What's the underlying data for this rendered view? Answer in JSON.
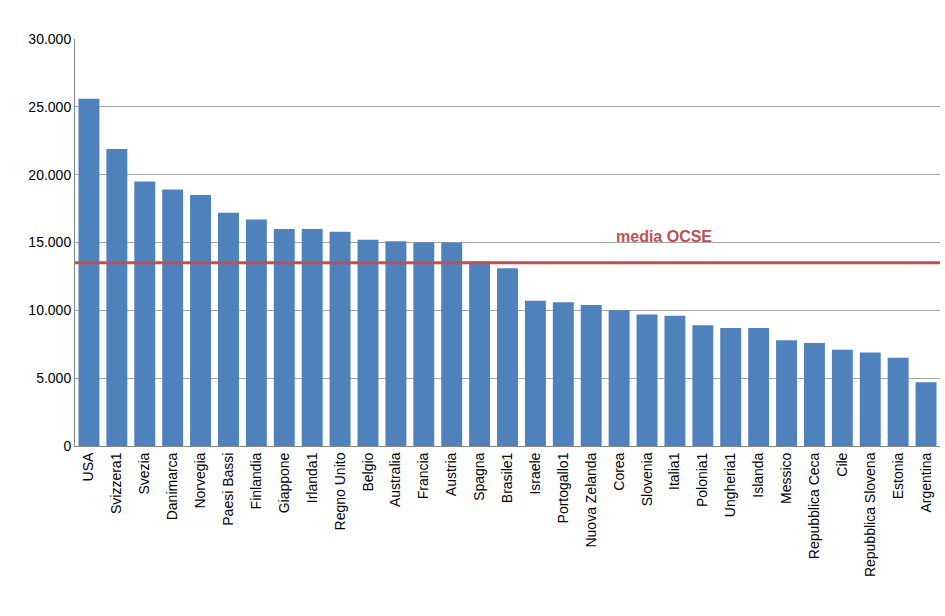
{
  "chart_data": {
    "type": "bar",
    "categories": [
      "USA",
      "Svizzera1",
      "Svezia",
      "Danimarca",
      "Norvegia",
      "Paesi Bassi",
      "Finlandia",
      "Giappone",
      "Irlanda1",
      "Regno Unito",
      "Belgio",
      "Australia",
      "Francia",
      "Austria",
      "Spagna",
      "Brasile1",
      "Israele",
      "Portogallo1",
      "Nuova Zelanda",
      "Corea",
      "Slovenia",
      "Italia1",
      "Polonia1",
      "Ungheria1",
      "Islanda",
      "Messico",
      "Repubblica Ceca",
      "Cile",
      "Repubblica Slovena",
      "Estonia",
      "Argentina"
    ],
    "values": [
      25600,
      21900,
      19500,
      18900,
      18500,
      17200,
      16700,
      16000,
      16000,
      15800,
      15200,
      15100,
      15000,
      15000,
      13600,
      13100,
      10700,
      10600,
      10400,
      10000,
      9700,
      9600,
      8900,
      8700,
      8700,
      7800,
      7600,
      7100,
      6900,
      6500,
      4700
    ],
    "color": "#4f81bd",
    "ylim": [
      0,
      30000
    ],
    "yticks": [
      0,
      {
        "value": 5000,
        "label": "5.000"
      },
      {
        "value": 10000,
        "label": "10.000"
      },
      {
        "value": 15000,
        "label": "15.000"
      },
      {
        "value": 20000,
        "label": "20.000"
      },
      {
        "value": 25000,
        "label": "25.000"
      },
      {
        "value": 30000,
        "label": "30.000"
      }
    ],
    "grid": true,
    "average": {
      "label": "media OCSE",
      "value": 13500,
      "color": "#c0504d"
    }
  }
}
